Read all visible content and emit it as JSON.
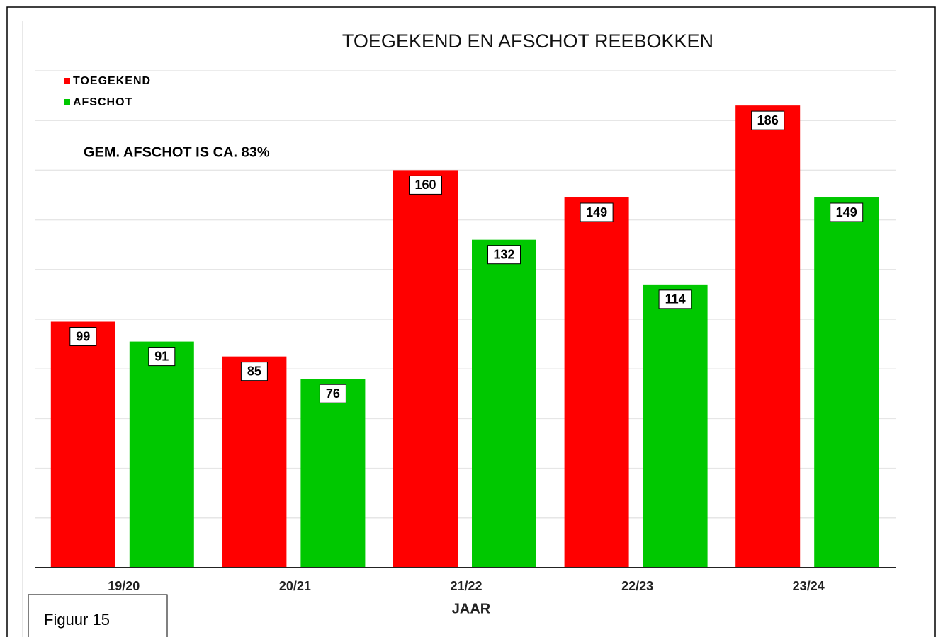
{
  "chart_data": {
    "type": "bar",
    "title": "TOEGEKEND EN AFSCHOT REEBOKKEN",
    "annotation": "GEM. AFSCHOT IS CA. 83%",
    "x_label": "JAAR",
    "figure_label": "Figuur 15",
    "categories": [
      "19/20",
      "20/21",
      "21/22",
      "22/23",
      "23/24"
    ],
    "series": [
      {
        "name": "TOEGEKEND",
        "color": "#ff0000",
        "values": [
          99,
          85,
          160,
          149,
          186
        ]
      },
      {
        "name": "AFSCHOT",
        "color": "#00c800",
        "values": [
          91,
          76,
          132,
          114,
          149
        ]
      }
    ],
    "ylim": [
      0,
      200
    ],
    "yticks": [
      0,
      20,
      40,
      60,
      80,
      100,
      120,
      140,
      160,
      180,
      200
    ],
    "grid": true
  }
}
